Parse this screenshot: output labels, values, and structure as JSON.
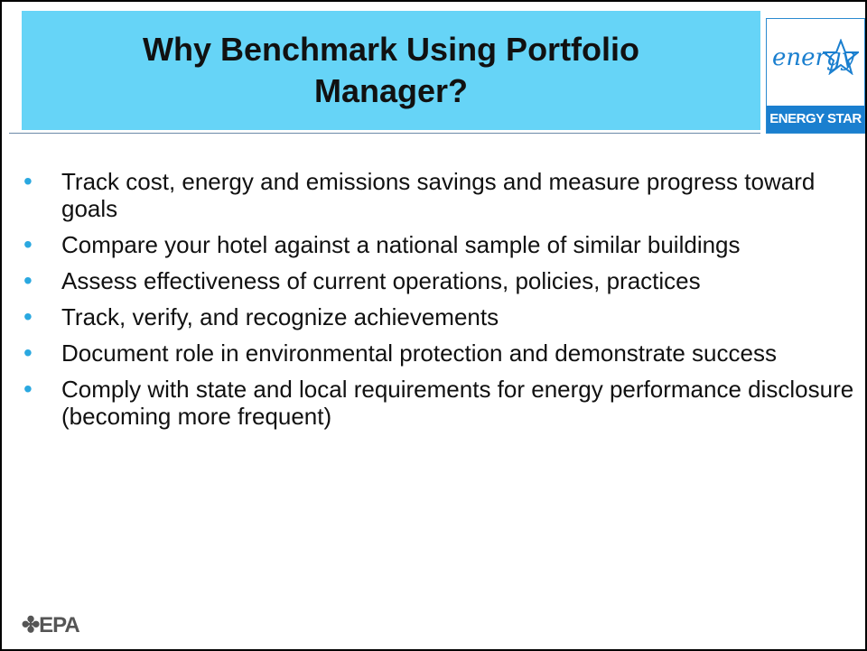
{
  "title": "Why Benchmark Using Portfolio Manager?",
  "logo": {
    "script": "energy",
    "label": "ENERGY STAR"
  },
  "bullets": [
    "Track cost, energy and emissions savings and measure progress toward goals",
    "Compare your hotel against a national sample of similar buildings",
    "Assess effectiveness of current operations, policies, practices",
    "Track, verify, and recognize achievements",
    "Document role in environmental protection and demonstrate success",
    "Comply with state and local requirements for energy performance disclosure (becoming more frequent)"
  ],
  "footer": "EPA"
}
